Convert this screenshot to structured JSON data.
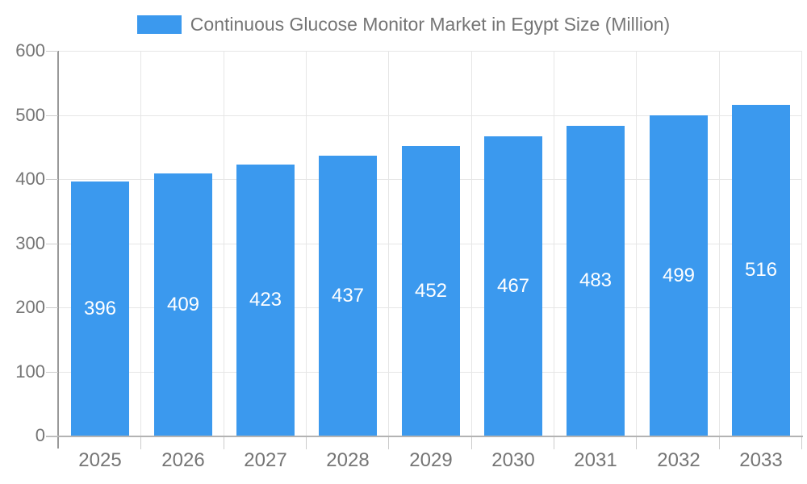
{
  "chart_data": {
    "type": "bar",
    "title": "Continuous Glucose Monitor Market in Egypt Size (Million)",
    "categories": [
      "2025",
      "2026",
      "2027",
      "2028",
      "2029",
      "2030",
      "2031",
      "2032",
      "2033"
    ],
    "values": [
      396,
      409,
      423,
      437,
      452,
      467,
      483,
      499,
      516
    ],
    "series_name": "Continuous Glucose Monitor Market in Egypt Size (Million)",
    "xlabel": "",
    "ylabel": "",
    "ylim": [
      0,
      600
    ],
    "yticks": [
      0,
      100,
      200,
      300,
      400,
      500,
      600
    ],
    "grid": true,
    "legend_position": "top-center",
    "value_labels": "centered-inside-bars"
  },
  "colors": {
    "bar": "#3b99ee",
    "axis_text": "#757575",
    "title_text": "#757575",
    "gridline": "#e6e6e6",
    "y_axis_line": "#999999",
    "x_axis_line": "#b3b3b3",
    "tick": "#cccccc",
    "value_label": "#ffffff",
    "background": "#ffffff"
  }
}
